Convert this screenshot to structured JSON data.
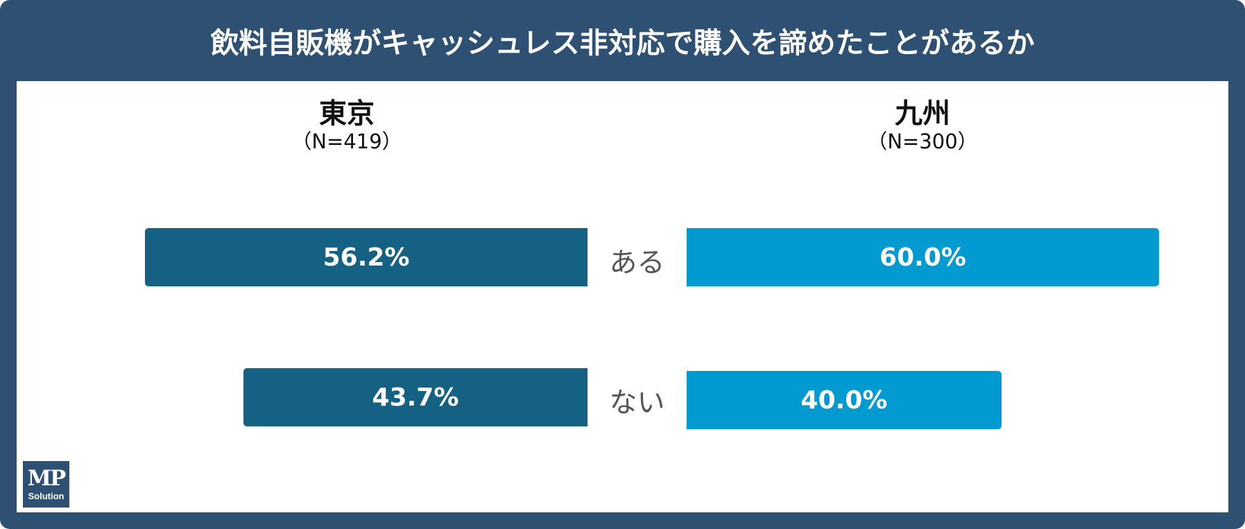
{
  "title": "飲料自販機がキャッシュレス非対応で購入を諦めたことがあるか",
  "logo": {
    "text_main": "MP",
    "text_sub": "Solution"
  },
  "colors": {
    "frame": "#2e5073",
    "tokyo": "#156183",
    "kyushu": "#029ad0",
    "category_text": "#555555"
  },
  "chart_data": {
    "type": "bar",
    "title": "飲料自販機がキャッシュレス非対応で購入を諦めたことがあるか",
    "categories": [
      "ある",
      "ない"
    ],
    "unit": "%",
    "series": [
      {
        "name": "東京",
        "n_label": "（N=419）",
        "values": [
          56.2,
          43.7
        ],
        "labels": [
          "56.2%",
          "43.7%"
        ]
      },
      {
        "name": "九州",
        "n_label": "（N=300）",
        "values": [
          60.0,
          40.0
        ],
        "labels": [
          "60.0%",
          "40.0%"
        ]
      }
    ],
    "ylim": [
      0,
      100
    ],
    "legend": "none"
  }
}
